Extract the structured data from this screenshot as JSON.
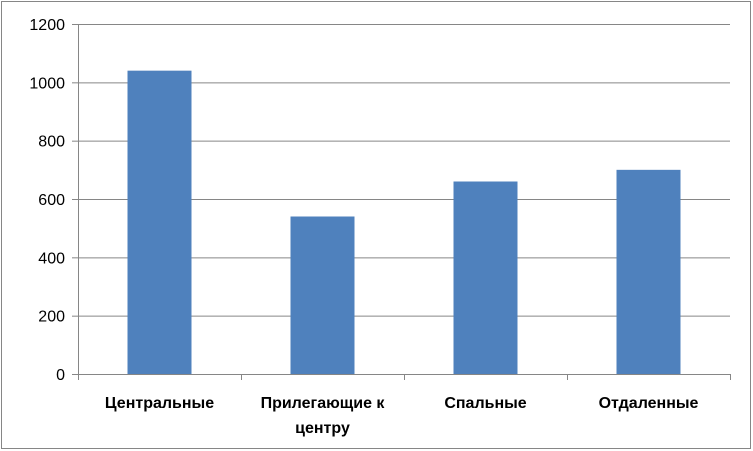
{
  "chart_data": {
    "type": "bar",
    "categories": [
      [
        "Центральные"
      ],
      [
        "Прилегающие к",
        "центру"
      ],
      [
        "Спальные"
      ],
      [
        "Отдаленные"
      ]
    ],
    "values": [
      1040,
      540,
      660,
      700
    ],
    "ylim": [
      0,
      1200
    ],
    "yticks": [
      "0",
      "200",
      "400",
      "600",
      "800",
      "1000",
      "1200"
    ],
    "grid": true,
    "legend": "none",
    "colors": {
      "bar": "#4f81bd",
      "grid": "#868686",
      "axis": "#868686"
    }
  }
}
